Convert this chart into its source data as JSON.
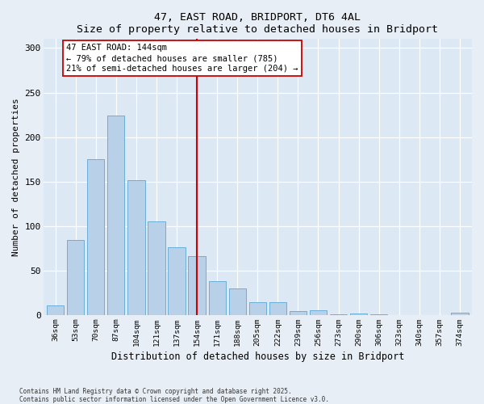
{
  "title1": "47, EAST ROAD, BRIDPORT, DT6 4AL",
  "title2": "Size of property relative to detached houses in Bridport",
  "xlabel": "Distribution of detached houses by size in Bridport",
  "ylabel": "Number of detached properties",
  "categories": [
    "36sqm",
    "53sqm",
    "70sqm",
    "87sqm",
    "104sqm",
    "121sqm",
    "137sqm",
    "154sqm",
    "171sqm",
    "188sqm",
    "205sqm",
    "222sqm",
    "239sqm",
    "256sqm",
    "273sqm",
    "290sqm",
    "306sqm",
    "323sqm",
    "340sqm",
    "357sqm",
    "374sqm"
  ],
  "values": [
    11,
    85,
    175,
    224,
    152,
    105,
    76,
    66,
    38,
    30,
    15,
    15,
    5,
    6,
    1,
    2,
    1,
    0,
    0,
    0,
    3
  ],
  "bar_color": "#b8d0e8",
  "bar_edge_color": "#6baed6",
  "annotation_title": "47 EAST ROAD: 144sqm",
  "annotation_line1": "← 79% of detached houses are smaller (785)",
  "annotation_line2": "21% of semi-detached houses are larger (204) →",
  "vline_color": "#cc0000",
  "vline_x": 7.0,
  "ylim": [
    0,
    310
  ],
  "yticks": [
    0,
    50,
    100,
    150,
    200,
    250,
    300
  ],
  "background_color": "#dce8f4",
  "fig_background": "#e8eef6",
  "footer_line1": "Contains HM Land Registry data © Crown copyright and database right 2025.",
  "footer_line2": "Contains public sector information licensed under the Open Government Licence v3.0."
}
